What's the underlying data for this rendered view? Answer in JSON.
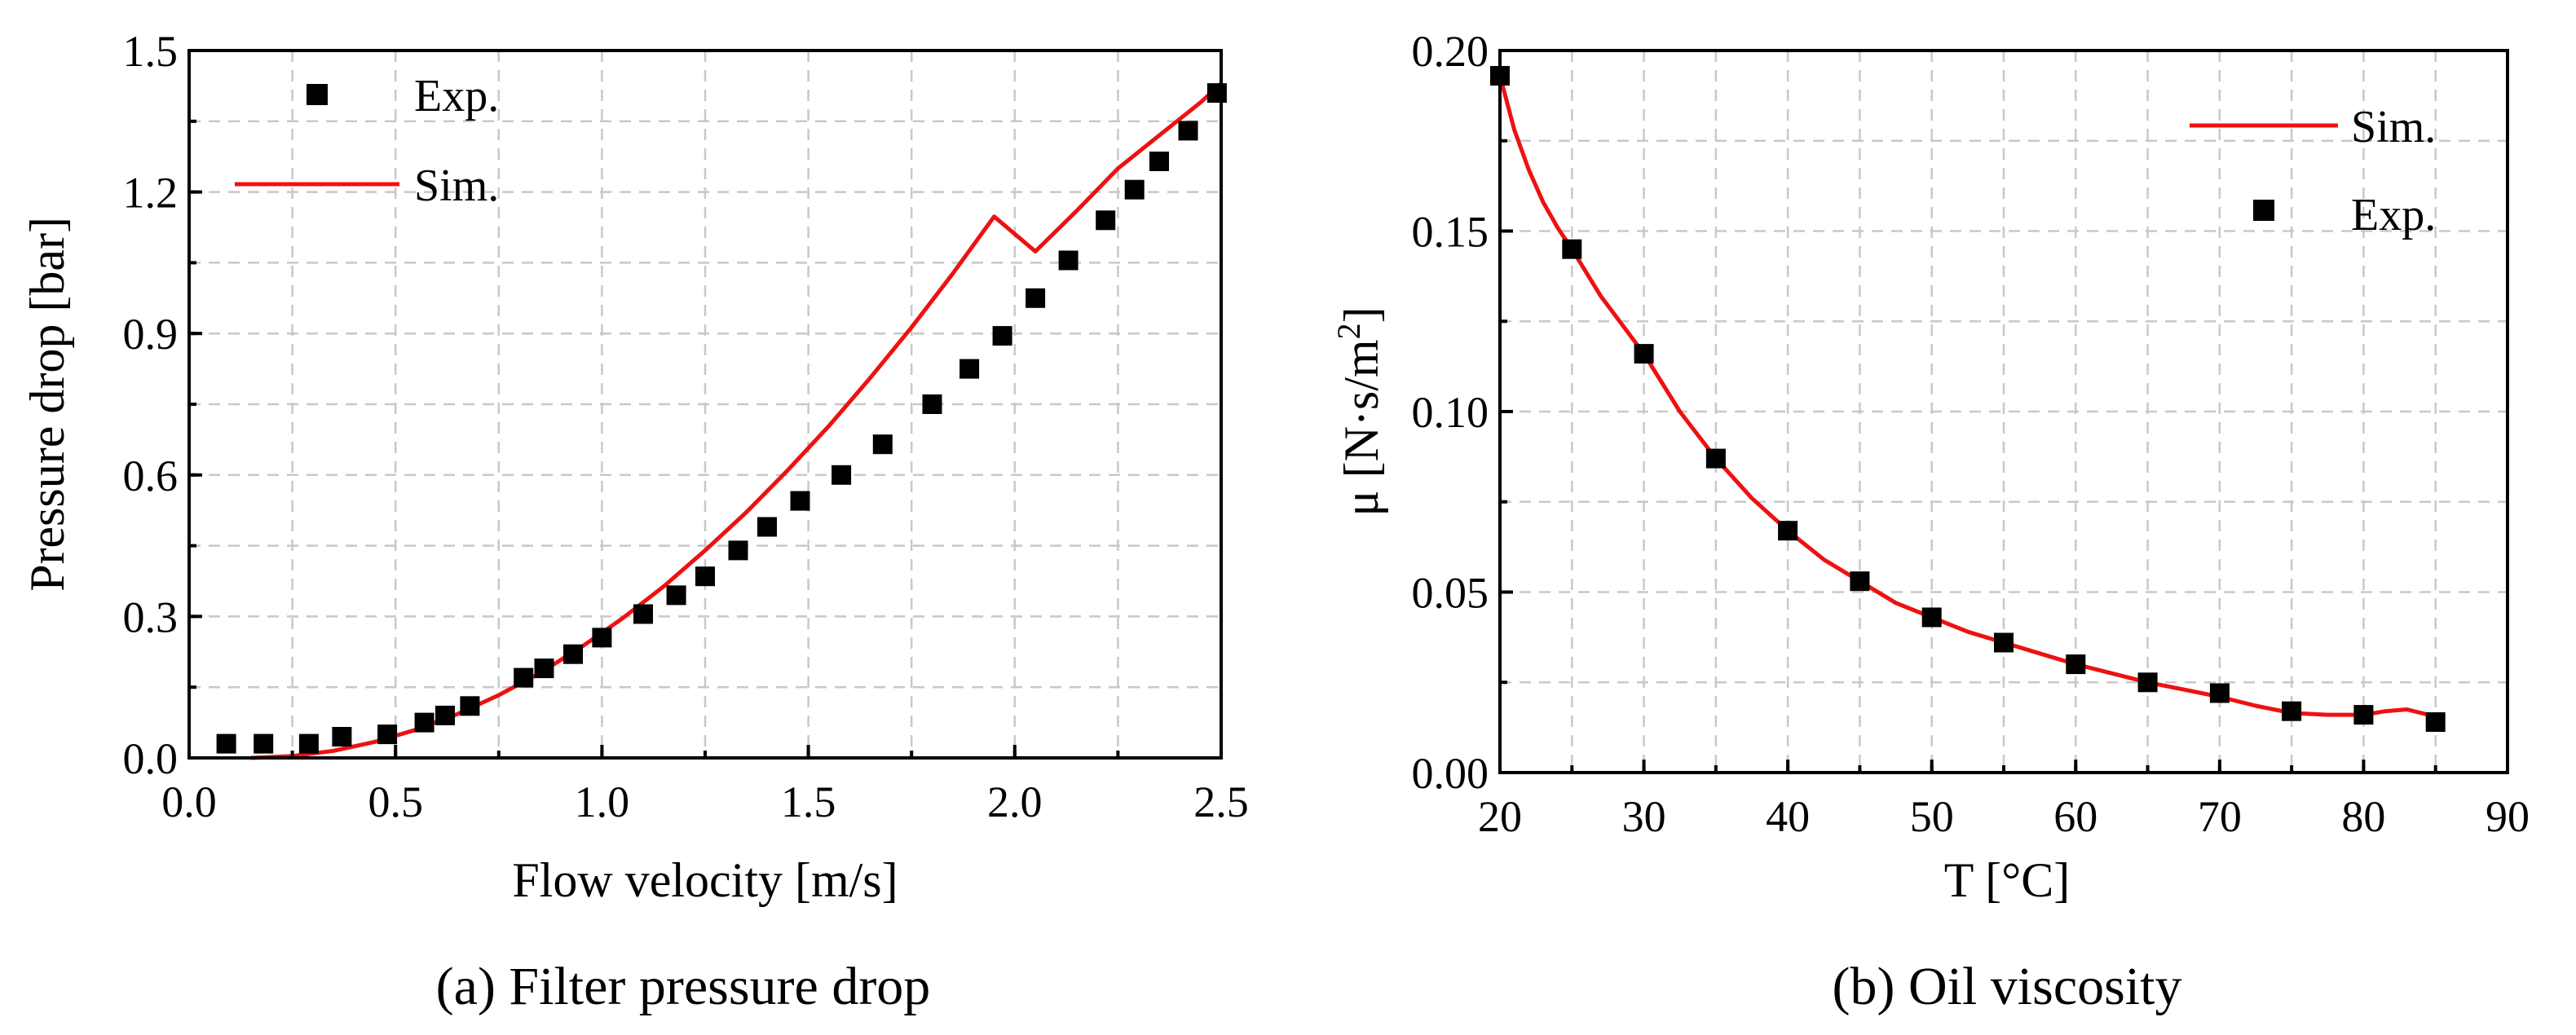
{
  "chart_data": [
    {
      "type": "scatter",
      "caption": "(a) Filter pressure drop",
      "xlabel": "Flow velocity [m/s]",
      "ylabel": "Pressure drop [bar]",
      "xlim": [
        0.0,
        2.5
      ],
      "ylim": [
        0.0,
        1.5
      ],
      "xticks": [
        "0.0",
        "0.5",
        "1.0",
        "1.5",
        "2.0",
        "2.5"
      ],
      "yticks": [
        "0.0",
        "0.3",
        "0.6",
        "0.9",
        "1.2",
        "1.5"
      ],
      "xgrid": [
        0.0,
        0.25,
        0.5,
        0.75,
        1.0,
        1.25,
        1.5,
        1.75,
        2.0,
        2.25,
        2.5
      ],
      "ygrid": [
        0.0,
        0.15,
        0.3,
        0.45,
        0.6,
        0.75,
        0.9,
        1.05,
        1.2,
        1.35,
        1.5
      ],
      "grid": true,
      "legend_position": "top-left",
      "legend": {
        "exp": "Exp.",
        "sim": "Sim."
      },
      "series": [
        {
          "name": "Exp.",
          "kind": "markers",
          "x": [
            0.09,
            0.18,
            0.29,
            0.37,
            0.48,
            0.57,
            0.62,
            0.68,
            0.81,
            0.86,
            0.93,
            1.0,
            1.1,
            1.18,
            1.25,
            1.33,
            1.4,
            1.48,
            1.58,
            1.68,
            1.8,
            1.89,
            1.97,
            2.05,
            2.13,
            2.22,
            2.29,
            2.35,
            2.42,
            2.49
          ],
          "y": [
            0.03,
            0.03,
            0.03,
            0.045,
            0.05,
            0.075,
            0.09,
            0.11,
            0.17,
            0.19,
            0.22,
            0.255,
            0.305,
            0.345,
            0.385,
            0.44,
            0.49,
            0.545,
            0.6,
            0.665,
            0.75,
            0.825,
            0.895,
            0.975,
            1.055,
            1.14,
            1.205,
            1.265,
            1.33,
            1.41
          ]
        },
        {
          "name": "Sim.",
          "kind": "line",
          "x": [
            0.15,
            0.25,
            0.35,
            0.45,
            0.55,
            0.65,
            0.75,
            0.85,
            0.95,
            1.05,
            1.15,
            1.25,
            1.35,
            1.45,
            1.55,
            1.65,
            1.75,
            1.85,
            1.95,
            2.05,
            2.15,
            2.25,
            2.35,
            2.45,
            2.5
          ],
          "y": [
            0.0,
            0.004,
            0.015,
            0.034,
            0.06,
            0.093,
            0.133,
            0.18,
            0.235,
            0.296,
            0.364,
            0.44,
            0.521,
            0.61,
            0.704,
            0.806,
            0.913,
            1.027,
            1.148,
            1.074,
            1.16,
            1.25,
            1.32,
            1.39,
            1.43
          ]
        }
      ]
    },
    {
      "type": "scatter",
      "caption": "(b) Oil viscosity",
      "xlabel": "T [°C]",
      "ylabel_main": "μ [N·s/m",
      "ylabel_sup": "2",
      "ylabel_end": "]",
      "xlim": [
        20,
        90
      ],
      "ylim": [
        0.0,
        0.2
      ],
      "xticks": [
        "20",
        "30",
        "40",
        "50",
        "60",
        "70",
        "80",
        "90"
      ],
      "yticks": [
        "0.00",
        "0.05",
        "0.10",
        "0.15",
        "0.20"
      ],
      "xgrid": [
        20,
        25,
        30,
        35,
        40,
        45,
        50,
        55,
        60,
        65,
        70,
        75,
        80,
        85,
        90
      ],
      "ygrid": [
        0.0,
        0.025,
        0.05,
        0.075,
        0.1,
        0.125,
        0.15,
        0.175,
        0.2
      ],
      "grid": true,
      "legend_position": "top-right",
      "legend": {
        "sim": "Sim.",
        "exp": "Exp."
      },
      "series": [
        {
          "name": "Exp.",
          "kind": "markers",
          "x": [
            20,
            25,
            30,
            35,
            40,
            45,
            50,
            55,
            60,
            65,
            70,
            75,
            80,
            85
          ],
          "y": [
            0.193,
            0.145,
            0.116,
            0.087,
            0.067,
            0.053,
            0.043,
            0.036,
            0.03,
            0.025,
            0.022,
            0.017,
            0.016,
            0.014
          ]
        },
        {
          "name": "Sim.",
          "kind": "line",
          "x": [
            20,
            21,
            22,
            23,
            24,
            25,
            27,
            30,
            32.5,
            35,
            37.5,
            40,
            42.5,
            45,
            47.5,
            50,
            52.5,
            55,
            57.5,
            60,
            62.5,
            65,
            67.5,
            70,
            72.5,
            75,
            77.5,
            80,
            81.5,
            83,
            84.5,
            85
          ],
          "y": [
            0.193,
            0.178,
            0.167,
            0.158,
            0.151,
            0.145,
            0.132,
            0.116,
            0.1,
            0.087,
            0.076,
            0.067,
            0.059,
            0.053,
            0.047,
            0.043,
            0.039,
            0.036,
            0.033,
            0.03,
            0.0275,
            0.025,
            0.023,
            0.021,
            0.0185,
            0.0165,
            0.016,
            0.016,
            0.017,
            0.0175,
            0.016,
            0.015
          ]
        }
      ]
    }
  ]
}
